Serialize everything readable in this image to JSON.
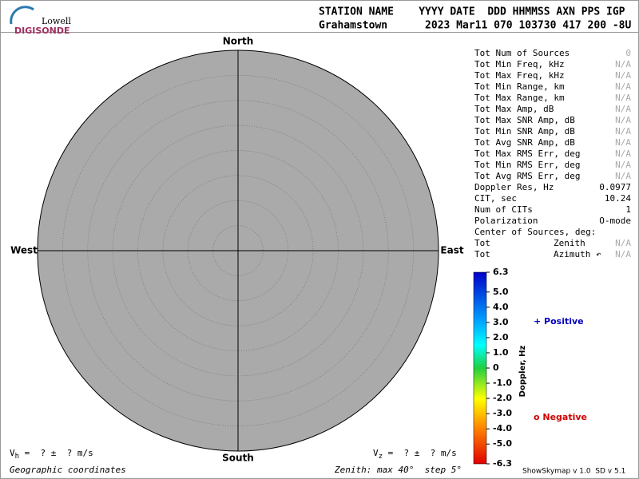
{
  "logo": {
    "top": "Lowell",
    "bottom": "DIGISONDE"
  },
  "header": {
    "columns": "STATION NAME    YYYY DATE  DDD HHMMSS AXN PPS IGP",
    "values": "Grahamstown      2023 Mar11 070 103730 417 200 -8U"
  },
  "stats": [
    {
      "label": "Tot Num of Sources",
      "value": "0"
    },
    {
      "label": "Tot Min Freq, kHz",
      "value": "N/A"
    },
    {
      "label": "Tot Max Freq, kHz",
      "value": "N/A"
    },
    {
      "label": "Tot Min Range, km",
      "value": "N/A"
    },
    {
      "label": "Tot Max Range, km",
      "value": "N/A"
    },
    {
      "label": "Tot Max Amp, dB",
      "value": "N/A"
    },
    {
      "label": "Tot Max SNR Amp, dB",
      "value": "N/A"
    },
    {
      "label": "Tot Min SNR Amp, dB",
      "value": "N/A"
    },
    {
      "label": "Tot Avg SNR Amp, dB",
      "value": "N/A"
    },
    {
      "label": "Tot Max RMS Err, deg",
      "value": "N/A"
    },
    {
      "label": "Tot Min RMS Err, deg",
      "value": "N/A"
    },
    {
      "label": "Tot Avg RMS Err, deg",
      "value": "N/A"
    },
    {
      "label": "Doppler Res, Hz",
      "value": "0.0977"
    },
    {
      "label": "CIT, sec",
      "value": "10.24"
    },
    {
      "label": "Num of CITs",
      "value": "1"
    },
    {
      "label": "Polarization",
      "value": "O-mode"
    }
  ],
  "center": {
    "title": "Center of Sources, deg:",
    "rows": [
      {
        "label": "Tot",
        "name": "Zenith",
        "value": "N/A"
      },
      {
        "label": "Tot",
        "name": "Azimuth ↶",
        "value": "N/A"
      }
    ]
  },
  "chart_data": {
    "type": "skymap",
    "directions": {
      "north": "North",
      "south": "South",
      "west": "West",
      "east": "East"
    },
    "colorbar": {
      "label": "Doppler, Hz",
      "clim": [
        -6.3,
        6.3
      ],
      "ticks": [
        6.3,
        {
          "value": 5,
          "label": "5.0"
        },
        {
          "value": 4,
          "label": "4.0"
        },
        {
          "value": 3,
          "label": "3.0"
        },
        {
          "value": 2,
          "label": "2.0"
        },
        {
          "value": 1,
          "label": "1.0"
        },
        0,
        {
          "value": -1,
          "label": "-1.0"
        },
        {
          "value": -2,
          "label": "-2.0"
        },
        {
          "value": -3,
          "label": "-3.0"
        },
        {
          "value": -4,
          "label": "-4.0"
        },
        {
          "value": -5,
          "label": "-5.0"
        },
        -6.3
      ]
    },
    "legend": {
      "positive": "+ Positive",
      "negative": "o Negative"
    }
  },
  "footer": {
    "vh": {
      "symbol": "V",
      "sub": "h",
      "text": " =  ? ±  ? m/s"
    },
    "vz": {
      "symbol": "V",
      "sub": "z",
      "text": " =  ? ±  ? m/s"
    },
    "coords": "Geographic coordinates",
    "zenith": "Zenith: max 40°  step 5°",
    "version": "ShowSkymap v 1.0  SD v 5.1"
  }
}
